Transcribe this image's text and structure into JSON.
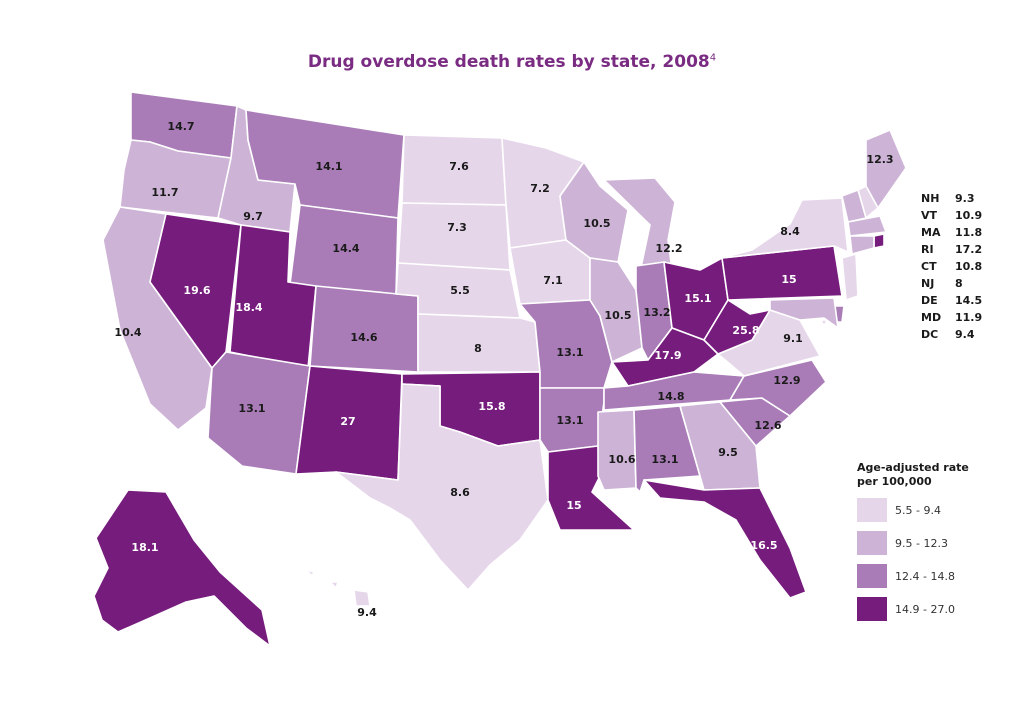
{
  "title": "Drug overdose death rates by state, 2008",
  "title_footnote": "4",
  "bins": [
    {
      "label": "5.5 - 9.4",
      "color": "#e6d6ea"
    },
    {
      "label": "9.5 - 12.3",
      "color": "#cdb3d6"
    },
    {
      "label": "12.4 - 14.8",
      "color": "#a97cb7"
    },
    {
      "label": "14.9 - 27.0",
      "color": "#761c7d"
    }
  ],
  "legend_title": "Age-adjusted rate per 100,000",
  "small_states": [
    {
      "abbr": "NH",
      "value": "9.3"
    },
    {
      "abbr": "VT",
      "value": "10.9"
    },
    {
      "abbr": "MA",
      "value": "11.8"
    },
    {
      "abbr": "RI",
      "value": "17.2"
    },
    {
      "abbr": "CT",
      "value": "10.8"
    },
    {
      "abbr": "NJ",
      "value": "8"
    },
    {
      "abbr": "DE",
      "value": "14.5"
    },
    {
      "abbr": "MD",
      "value": "11.9"
    },
    {
      "abbr": "DC",
      "value": "9.4"
    }
  ],
  "states": [
    {
      "abbr": "WA",
      "value": "14.7"
    },
    {
      "abbr": "OR",
      "value": "11.7"
    },
    {
      "abbr": "CA",
      "value": "10.4"
    },
    {
      "abbr": "NV",
      "value": "19.6"
    },
    {
      "abbr": "ID",
      "value": "9.7"
    },
    {
      "abbr": "MT",
      "value": "14.1"
    },
    {
      "abbr": "WY",
      "value": "14.4"
    },
    {
      "abbr": "UT",
      "value": "18.4"
    },
    {
      "abbr": "CO",
      "value": "14.6"
    },
    {
      "abbr": "AZ",
      "value": "13.1"
    },
    {
      "abbr": "NM",
      "value": "27"
    },
    {
      "abbr": "ND",
      "value": "7.6"
    },
    {
      "abbr": "SD",
      "value": "7.3"
    },
    {
      "abbr": "NE",
      "value": "5.5"
    },
    {
      "abbr": "KS",
      "value": "8"
    },
    {
      "abbr": "OK",
      "value": "15.8"
    },
    {
      "abbr": "TX",
      "value": "8.6"
    },
    {
      "abbr": "MN",
      "value": "7.2"
    },
    {
      "abbr": "IA",
      "value": "7.1"
    },
    {
      "abbr": "MO",
      "value": "13.1"
    },
    {
      "abbr": "AR",
      "value": "13.1"
    },
    {
      "abbr": "LA",
      "value": "15"
    },
    {
      "abbr": "WI",
      "value": "10.5"
    },
    {
      "abbr": "IL",
      "value": "10.5"
    },
    {
      "abbr": "MI",
      "value": "12.2"
    },
    {
      "abbr": "IN",
      "value": "13.2"
    },
    {
      "abbr": "OH",
      "value": "15.1"
    },
    {
      "abbr": "KY",
      "value": "17.9"
    },
    {
      "abbr": "TN",
      "value": "14.8"
    },
    {
      "abbr": "MS",
      "value": "10.6"
    },
    {
      "abbr": "AL",
      "value": "13.1"
    },
    {
      "abbr": "GA",
      "value": "9.5"
    },
    {
      "abbr": "FL",
      "value": "16.5"
    },
    {
      "abbr": "SC",
      "value": "12.6"
    },
    {
      "abbr": "NC",
      "value": "12.9"
    },
    {
      "abbr": "VA",
      "value": "9.1"
    },
    {
      "abbr": "WV",
      "value": "25.8"
    },
    {
      "abbr": "PA",
      "value": "15"
    },
    {
      "abbr": "NY",
      "value": "8.4"
    },
    {
      "abbr": "ME",
      "value": "12.3"
    },
    {
      "abbr": "NH",
      "value": "9.3"
    },
    {
      "abbr": "VT",
      "value": "10.9"
    },
    {
      "abbr": "MA",
      "value": "11.8"
    },
    {
      "abbr": "RI",
      "value": "17.2"
    },
    {
      "abbr": "CT",
      "value": "10.8"
    },
    {
      "abbr": "NJ",
      "value": "8"
    },
    {
      "abbr": "DE",
      "value": "14.5"
    },
    {
      "abbr": "MD",
      "value": "11.9"
    },
    {
      "abbr": "DC",
      "value": "9.4"
    },
    {
      "abbr": "AK",
      "value": "18.1"
    },
    {
      "abbr": "HI",
      "value": "9.4"
    }
  ]
}
